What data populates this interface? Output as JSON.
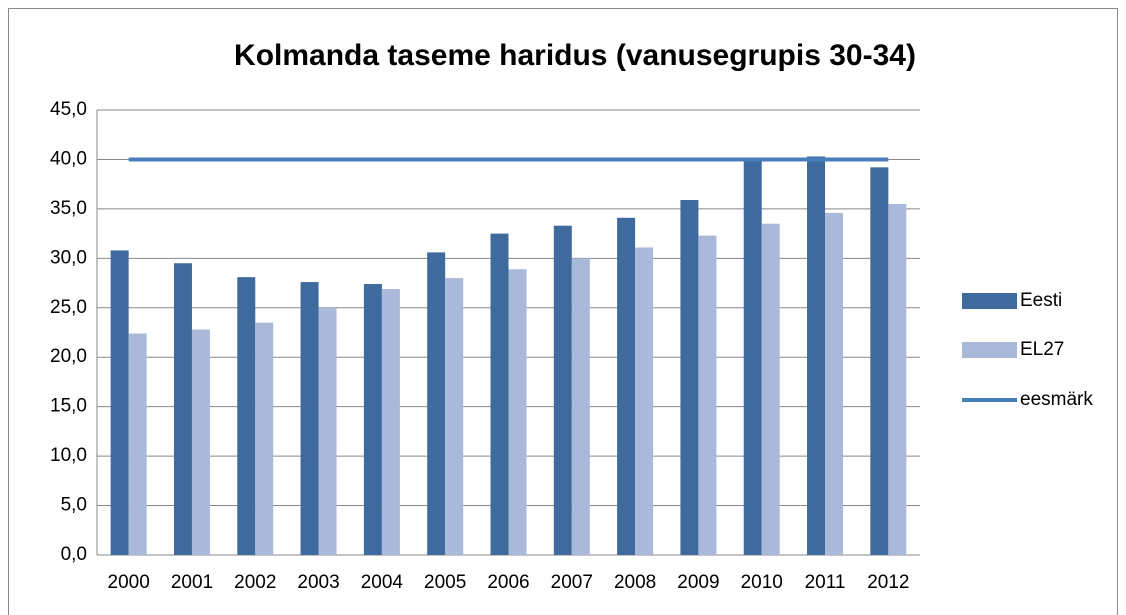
{
  "chart_data": {
    "type": "bar",
    "title": "Kolmanda taseme haridus (vanusegrupis 30-34)",
    "categories": [
      "2000",
      "2001",
      "2002",
      "2003",
      "2004",
      "2005",
      "2006",
      "2007",
      "2008",
      "2009",
      "2010",
      "2011",
      "2012"
    ],
    "series": [
      {
        "name": "Eesti",
        "type": "bar",
        "color": "#3f6a9e",
        "values": [
          30.8,
          29.5,
          28.1,
          27.6,
          27.4,
          30.6,
          32.5,
          33.3,
          34.1,
          35.9,
          40.0,
          40.3,
          39.2
        ]
      },
      {
        "name": "EL27",
        "type": "bar",
        "color": "#aab9d9",
        "values": [
          22.4,
          22.8,
          23.5,
          25.0,
          26.9,
          28.0,
          28.9,
          30.0,
          31.1,
          32.3,
          33.5,
          34.6,
          35.5
        ]
      },
      {
        "name": "eesmärk",
        "type": "line",
        "color": "#4a7ebb",
        "values": [
          40,
          40,
          40,
          40,
          40,
          40,
          40,
          40,
          40,
          40,
          40,
          40,
          40
        ]
      }
    ],
    "ylim": [
      0,
      45
    ],
    "yticks": [
      {
        "value": 0,
        "label": "0,0"
      },
      {
        "value": 5,
        "label": "5,0"
      },
      {
        "value": 10,
        "label": "10,0"
      },
      {
        "value": 15,
        "label": "15,0"
      },
      {
        "value": 20,
        "label": "20,0"
      },
      {
        "value": 25,
        "label": "25,0"
      },
      {
        "value": 30,
        "label": "30,0"
      },
      {
        "value": 35,
        "label": "35,0"
      },
      {
        "value": 40,
        "label": "40,0"
      },
      {
        "value": 45,
        "label": "45,0"
      }
    ],
    "grid": true,
    "legend": "right"
  }
}
